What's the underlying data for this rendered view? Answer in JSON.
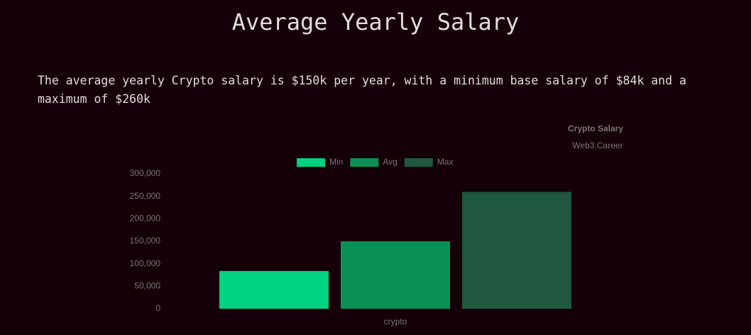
{
  "page": {
    "title": "Average Yearly Salary",
    "description": "The average yearly Crypto salary is $150k per year, with a minimum base salary of $84k and a maximum of $260k"
  },
  "chart_data": {
    "type": "bar",
    "title": "Crypto Salary",
    "subtitle": "Web3.Career",
    "categories": [
      "crypto"
    ],
    "series": [
      {
        "name": "Min",
        "color": "#00d37f",
        "values": [
          84000
        ]
      },
      {
        "name": "Avg",
        "color": "#0b9156",
        "values": [
          150000
        ]
      },
      {
        "name": "Max",
        "color": "#1f573f",
        "values": [
          260000
        ]
      }
    ],
    "ylim": [
      0,
      300000
    ],
    "yticks": [
      0,
      {
        "value": 50000,
        "label": "50,000"
      },
      {
        "value": 100000,
        "label": "100,000"
      },
      {
        "value": 150000,
        "label": "150,000"
      },
      {
        "value": 200000,
        "label": "200,000"
      },
      {
        "value": 250000,
        "label": "250,000"
      },
      {
        "value": 300000,
        "label": "300,000"
      }
    ],
    "grid": false,
    "legend": "top"
  }
}
